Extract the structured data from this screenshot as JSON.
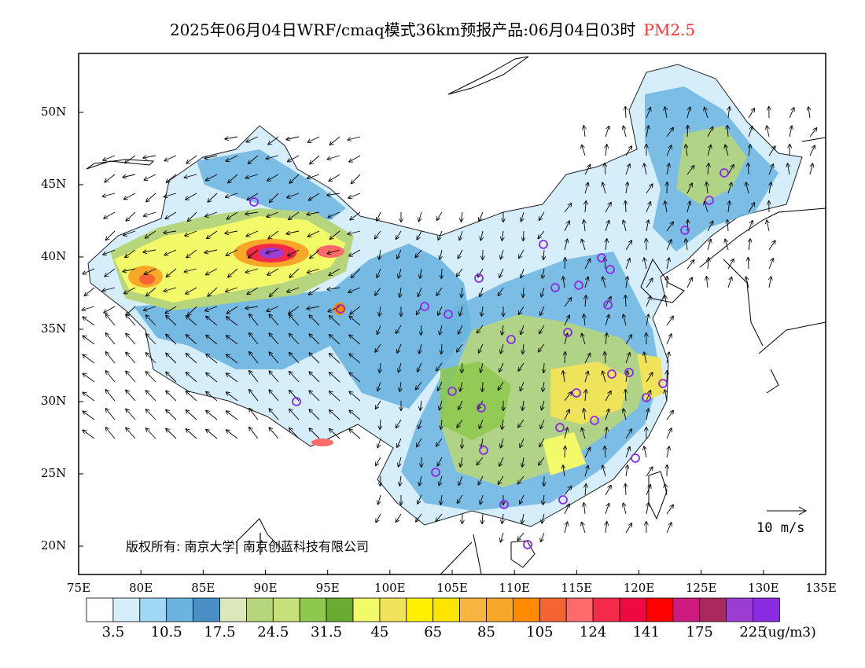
{
  "title": {
    "main": "2025年06月04日WRF/cmaq模式36km预报产品:06月04日03时",
    "pollutant": "PM2.5",
    "pollutant_color": "#ff3030"
  },
  "map": {
    "lon_labels": [
      "75E",
      "80E",
      "85E",
      "90E",
      "95E",
      "100E",
      "105E",
      "110E",
      "115E",
      "120E",
      "125E",
      "130E",
      "135E"
    ],
    "lat_labels": [
      "50N",
      "45N",
      "40N",
      "35N",
      "30N",
      "25N",
      "20N"
    ],
    "copyright": "版权所有: 南京大学| 南京创蓝科技有限公司",
    "wind_reference": "10 m/s",
    "station_marker_color": "#8a2be2"
  },
  "legend": {
    "colors": [
      "#ffffff",
      "#d6eefa",
      "#9fd8f4",
      "#6cb4e0",
      "#4a8fc6",
      "#dce8bc",
      "#b7d57c",
      "#c6e07a",
      "#8ec84e",
      "#6aaa32",
      "#f3fa6a",
      "#f2e45a",
      "#fff000",
      "#ffe400",
      "#f8b440",
      "#f9a728",
      "#ff8a00",
      "#f46432",
      "#ff6a6a",
      "#f52a4a",
      "#ee0a40",
      "#ff0000",
      "#cc1a7e",
      "#a82a5a",
      "#9b3dd0",
      "#8a2be2"
    ],
    "labels": [
      "3.5",
      "10.5",
      "17.5",
      "24.5",
      "31.5",
      "45",
      "65",
      "85",
      "105",
      "124",
      "141",
      "175",
      "225"
    ],
    "unit": "(ug/m3)"
  }
}
